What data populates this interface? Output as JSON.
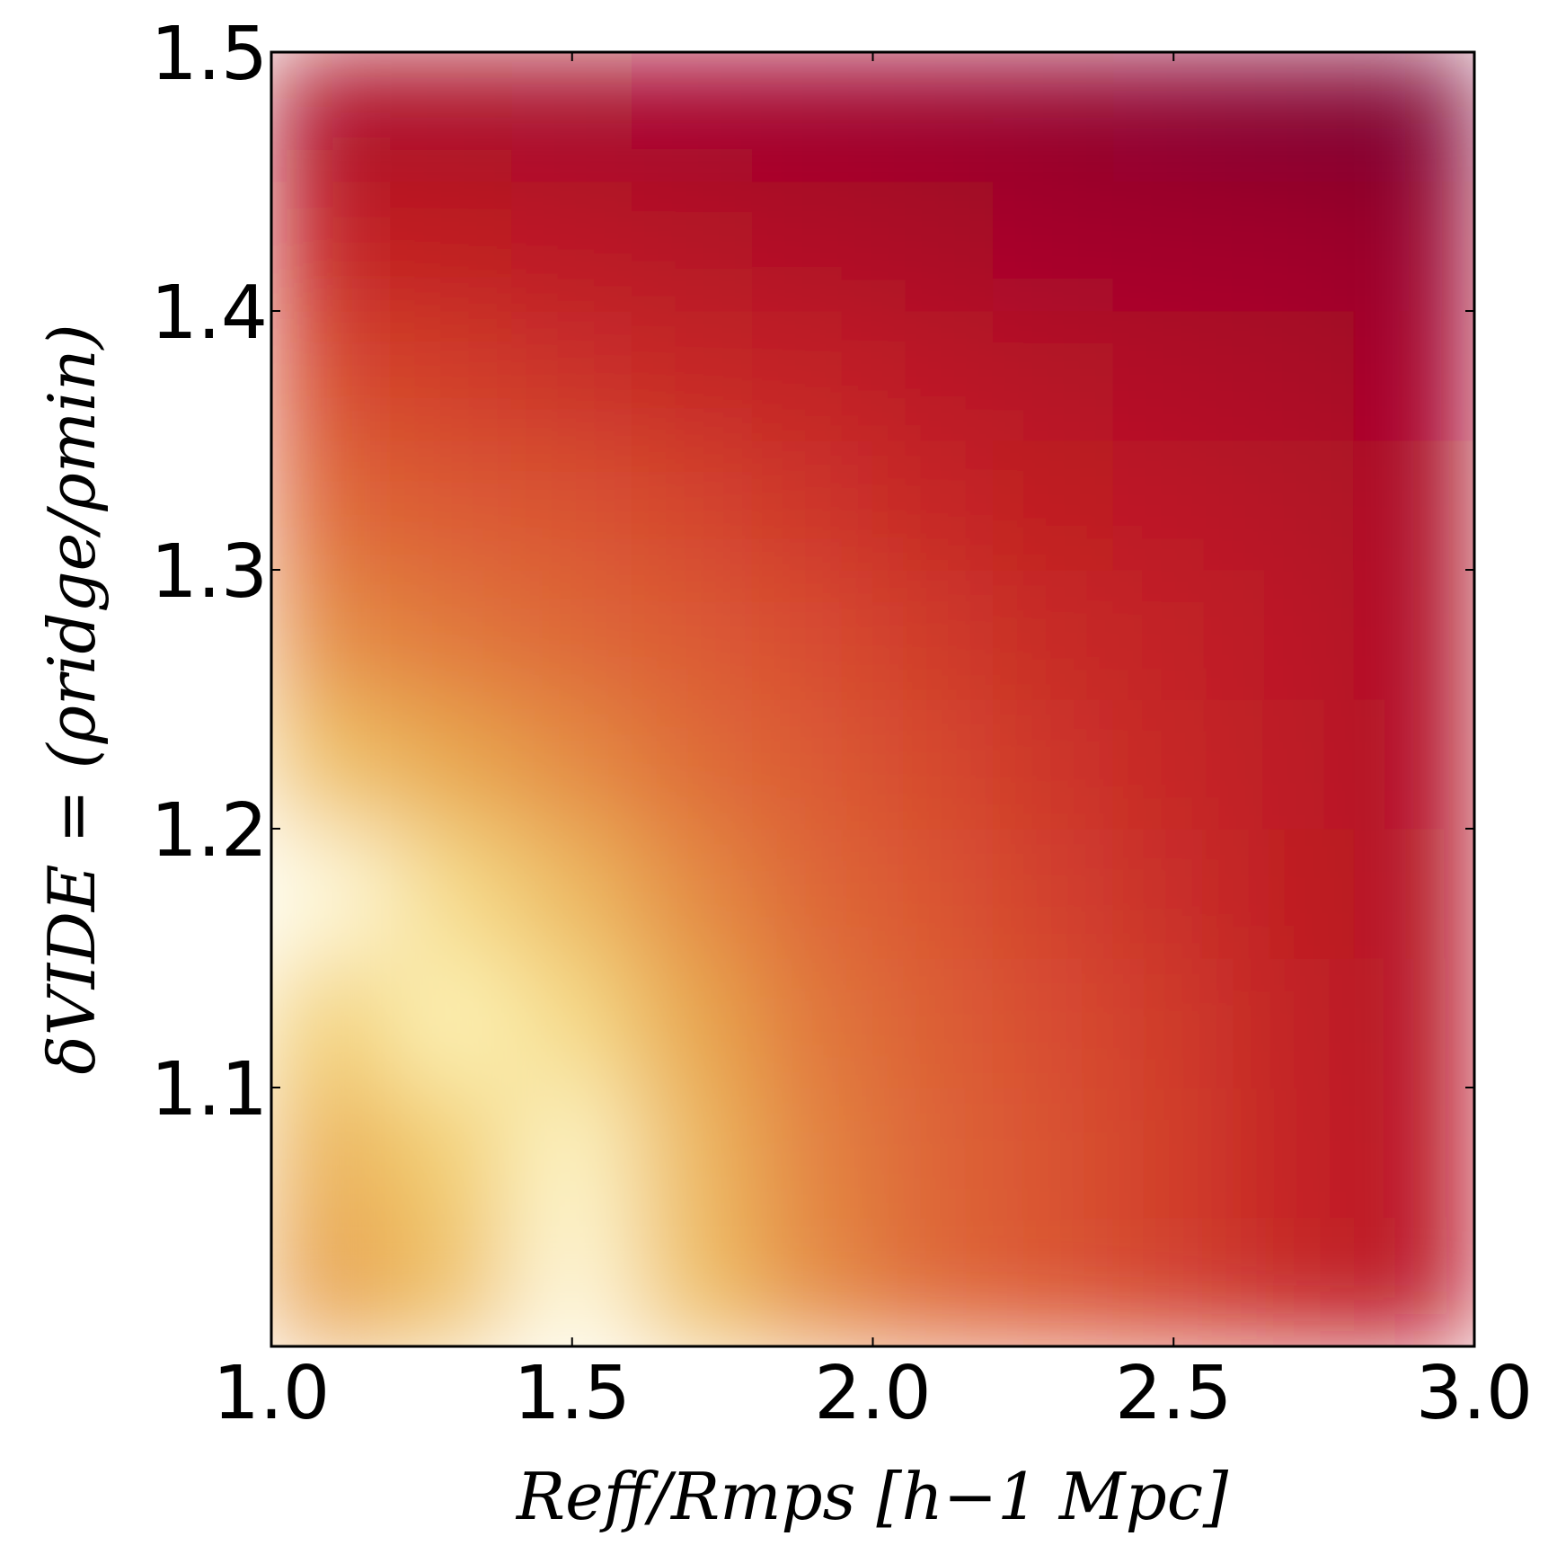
{
  "chart_data": {
    "type": "heatmap",
    "xlabel": "Reff/Rmps [h−1 Mpc]",
    "ylabel": "δVIDE = (ρridge/ρmin)",
    "colormap": "YlOrRd",
    "x": [
      1.1,
      1.3,
      1.5,
      1.7,
      1.9,
      2.1,
      2.3,
      2.5,
      2.7,
      2.9
    ],
    "y": [
      1.025,
      1.075,
      1.125,
      1.175,
      1.225,
      1.275,
      1.325,
      1.375,
      1.425,
      1.475
    ],
    "z": [
      [
        0.4,
        0.3,
        0.05,
        0.3,
        0.45,
        0.55,
        0.62,
        0.68,
        0.75,
        0.8
      ],
      [
        0.35,
        0.25,
        0.08,
        0.32,
        0.47,
        0.56,
        0.63,
        0.69,
        0.76,
        0.8
      ],
      [
        0.25,
        0.1,
        0.2,
        0.38,
        0.5,
        0.58,
        0.65,
        0.7,
        0.77,
        0.81
      ],
      [
        0.05,
        0.2,
        0.32,
        0.45,
        0.55,
        0.62,
        0.68,
        0.73,
        0.78,
        0.82
      ],
      [
        0.3,
        0.38,
        0.45,
        0.53,
        0.6,
        0.66,
        0.71,
        0.75,
        0.79,
        0.83
      ],
      [
        0.45,
        0.5,
        0.55,
        0.6,
        0.65,
        0.7,
        0.74,
        0.77,
        0.8,
        0.84
      ],
      [
        0.55,
        0.6,
        0.63,
        0.67,
        0.71,
        0.75,
        0.78,
        0.8,
        0.82,
        0.85
      ],
      [
        0.66,
        0.69,
        0.72,
        0.75,
        0.77,
        0.8,
        0.82,
        0.84,
        0.86,
        0.88
      ],
      [
        0.76,
        0.78,
        0.8,
        0.82,
        0.84,
        0.86,
        0.88,
        0.89,
        0.9,
        0.92
      ],
      [
        0.85,
        0.86,
        0.87,
        0.88,
        0.9,
        0.91,
        0.93,
        0.95,
        0.97,
        0.99
      ]
    ],
    "xlim": [
      1.0,
      3.0
    ],
    "xticks": [
      {
        "value": 1,
        "label": "1.0"
      },
      1.5,
      {
        "value": 2,
        "label": "2.0"
      },
      2.5,
      {
        "value": 3,
        "label": "3.0"
      }
    ],
    "ylim": [
      1.0,
      1.5
    ],
    "yticks": [
      1.1,
      1.2,
      1.3,
      1.4,
      1.5
    ]
  }
}
